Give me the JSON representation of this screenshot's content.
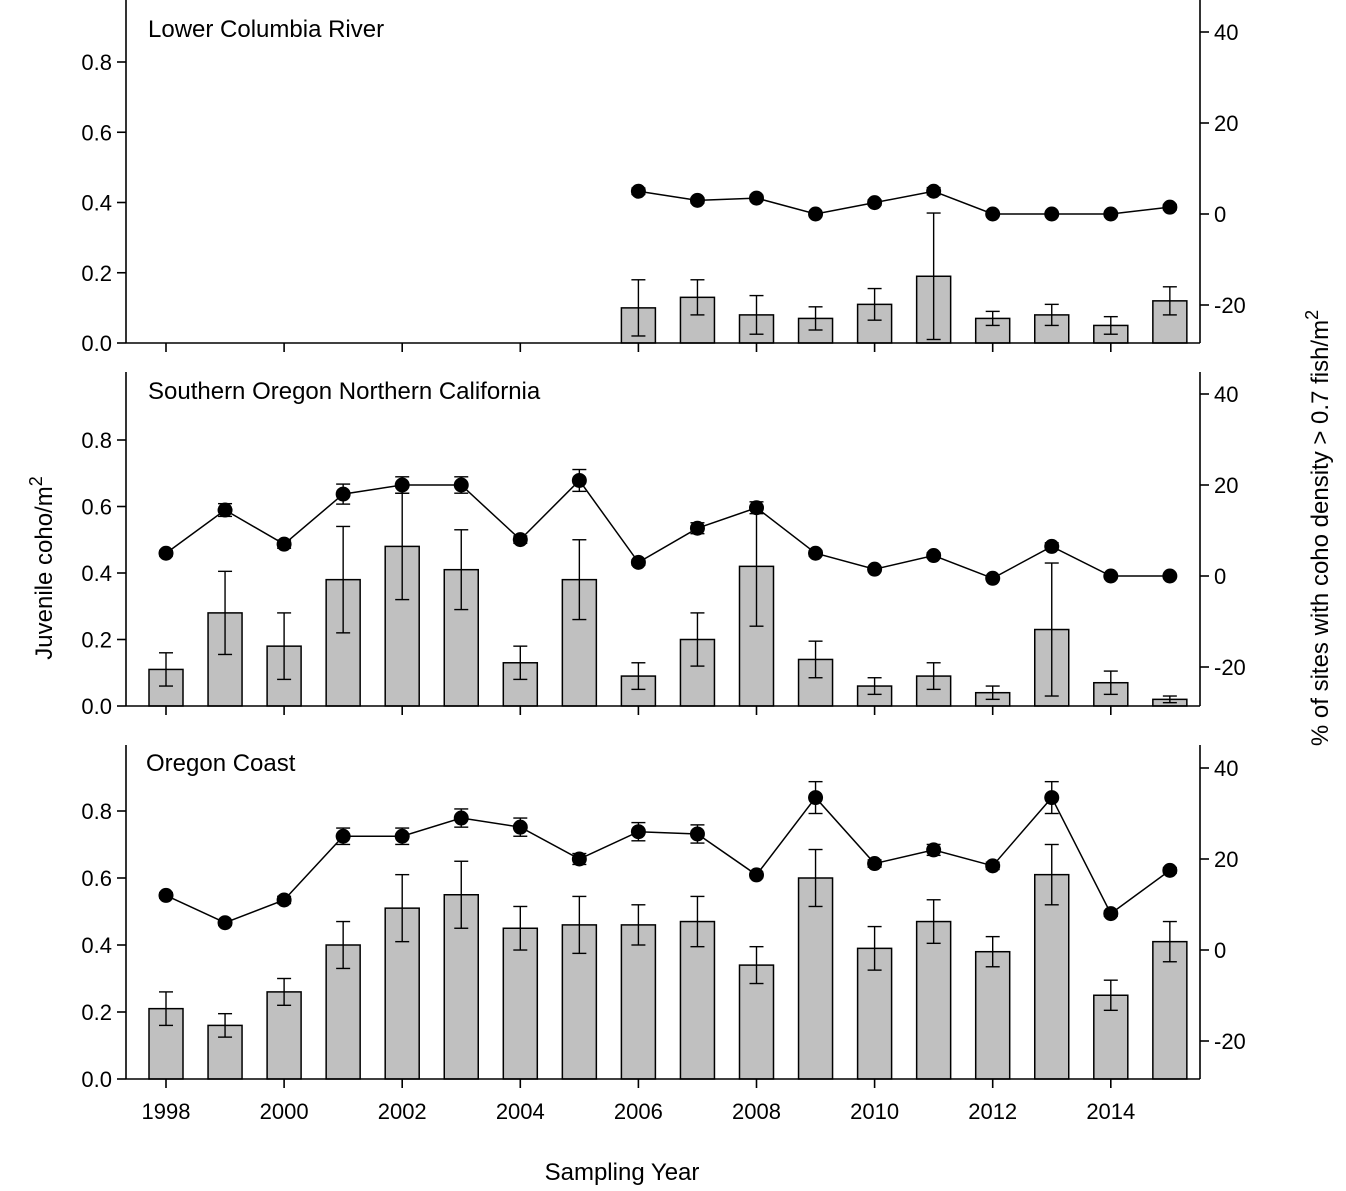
{
  "figure": {
    "ylabel_left": "Juvenile coho/m",
    "ylabel_left_sup": "2",
    "ylabel_right": "% of sites with coho density > 0.7 fish/m",
    "ylabel_right_sup": "2",
    "xlabel": "Sampling Year"
  },
  "chart_data": [
    {
      "type": "bar",
      "title": "Lower Columbia River",
      "x": [
        1998,
        1999,
        2000,
        2001,
        2002,
        2003,
        2004,
        2005,
        2006,
        2007,
        2008,
        2009,
        2010,
        2011,
        2012,
        2013,
        2014,
        2015
      ],
      "xticks": [
        1998,
        2000,
        2002,
        2004,
        2006,
        2008,
        2010,
        2012,
        2014
      ],
      "show_xtick_labels": false,
      "ylim_left": [
        0,
        0.95
      ],
      "yticks_left": [
        0.0,
        0.2,
        0.4,
        0.6,
        0.8
      ],
      "ylim_right": [
        -28,
        45
      ],
      "yticks_right": [
        -20,
        0,
        20,
        40
      ],
      "series": [
        {
          "axis": "left",
          "kind": "bar",
          "values": [
            null,
            null,
            null,
            null,
            null,
            null,
            null,
            null,
            0.1,
            0.13,
            0.08,
            0.07,
            0.11,
            0.19,
            0.07,
            0.08,
            0.05,
            0.12
          ],
          "err": [
            null,
            null,
            null,
            null,
            null,
            null,
            null,
            null,
            0.08,
            0.05,
            0.055,
            0.033,
            0.045,
            0.18,
            0.02,
            0.03,
            0.025,
            0.04
          ]
        },
        {
          "axis": "right",
          "kind": "line",
          "values": [
            null,
            null,
            null,
            null,
            null,
            null,
            null,
            null,
            5,
            3,
            3.5,
            0,
            2.5,
            5,
            0,
            0,
            0,
            1.5
          ],
          "err": [
            null,
            null,
            null,
            null,
            null,
            null,
            null,
            null,
            0.7,
            0.6,
            0.6,
            0,
            0.6,
            0.8,
            0,
            0,
            0,
            0.6
          ]
        }
      ]
    },
    {
      "type": "bar",
      "title": "Southern Oregon Northern California",
      "x": [
        1998,
        1999,
        2000,
        2001,
        2002,
        2003,
        2004,
        2005,
        2006,
        2007,
        2008,
        2009,
        2010,
        2011,
        2012,
        2013,
        2014,
        2015
      ],
      "xticks": [
        1998,
        2000,
        2002,
        2004,
        2006,
        2008,
        2010,
        2012,
        2014
      ],
      "show_xtick_labels": false,
      "ylim_left": [
        0,
        0.95
      ],
      "yticks_left": [
        0.0,
        0.2,
        0.4,
        0.6,
        0.8
      ],
      "ylim_right": [
        -28,
        45
      ],
      "yticks_right": [
        -20,
        0,
        20,
        40
      ],
      "series": [
        {
          "axis": "left",
          "kind": "bar",
          "values": [
            0.11,
            0.28,
            0.18,
            0.38,
            0.48,
            0.41,
            0.13,
            0.38,
            0.09,
            0.2,
            0.42,
            0.14,
            0.06,
            0.09,
            0.04,
            0.23,
            0.07,
            0.02
          ],
          "err": [
            0.05,
            0.125,
            0.1,
            0.16,
            0.16,
            0.12,
            0.05,
            0.12,
            0.04,
            0.08,
            0.18,
            0.055,
            0.025,
            0.04,
            0.02,
            0.2,
            0.035,
            0.01
          ]
        },
        {
          "axis": "right",
          "kind": "line",
          "values": [
            5,
            14.5,
            7,
            18,
            20,
            20,
            8,
            21,
            3,
            10.5,
            15,
            5,
            1.5,
            4.5,
            -0.5,
            6.5,
            0,
            0
          ],
          "err": [
            0.6,
            1.4,
            0.9,
            2.2,
            1.8,
            1.8,
            0.8,
            2.4,
            0.6,
            1.2,
            1.3,
            0.6,
            0.5,
            0.6,
            0.3,
            0.8,
            0,
            0
          ]
        }
      ]
    },
    {
      "type": "bar",
      "title": "Oregon Coast",
      "x": [
        1998,
        1999,
        2000,
        2001,
        2002,
        2003,
        2004,
        2005,
        2006,
        2007,
        2008,
        2009,
        2010,
        2011,
        2012,
        2013,
        2014,
        2015
      ],
      "xticks": [
        1998,
        2000,
        2002,
        2004,
        2006,
        2008,
        2010,
        2012,
        2014
      ],
      "show_xtick_labels": true,
      "ylim_left": [
        0,
        0.95
      ],
      "yticks_left": [
        0.0,
        0.2,
        0.4,
        0.6,
        0.8
      ],
      "ylim_right": [
        -28,
        40
      ],
      "yticks_right": [
        -20,
        0,
        20,
        40
      ],
      "series": [
        {
          "axis": "left",
          "kind": "bar",
          "values": [
            0.21,
            0.16,
            0.26,
            0.4,
            0.51,
            0.55,
            0.45,
            0.46,
            0.46,
            0.47,
            0.34,
            0.6,
            0.39,
            0.47,
            0.38,
            0.61,
            0.25,
            0.41
          ],
          "err": [
            0.05,
            0.035,
            0.04,
            0.07,
            0.1,
            0.1,
            0.065,
            0.085,
            0.06,
            0.075,
            0.055,
            0.085,
            0.065,
            0.065,
            0.045,
            0.09,
            0.045,
            0.06
          ]
        },
        {
          "axis": "right",
          "kind": "line",
          "values": [
            12,
            6,
            11,
            25,
            25,
            29,
            27,
            20,
            26,
            25.5,
            16.5,
            33.5,
            19,
            22,
            18.5,
            33.5,
            8,
            17.5
          ],
          "err": [
            0.6,
            0.6,
            0.8,
            1.8,
            1.8,
            2,
            2,
            1.2,
            2,
            2,
            0.6,
            3.5,
            0.8,
            1.2,
            0.8,
            3.5,
            0.6,
            0.6
          ]
        }
      ]
    }
  ]
}
